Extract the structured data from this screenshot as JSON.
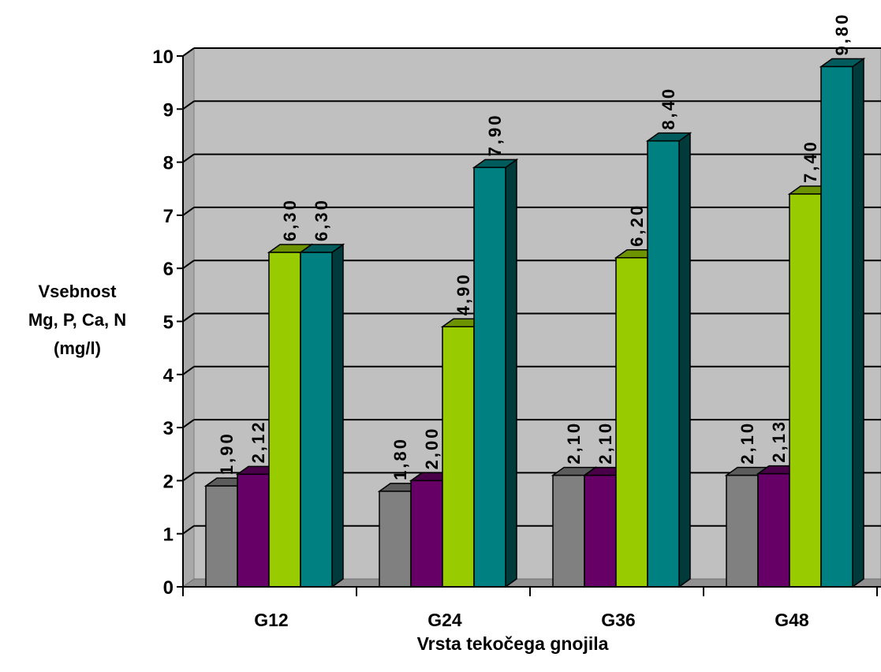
{
  "chart_data": {
    "type": "bar",
    "title": "",
    "xlabel": "Vrsta tekočega gnojila",
    "ylabel_lines": [
      "Vsebnost",
      "Mg, P, Ca, N",
      "(mg/l)"
    ],
    "categories": [
      "G12",
      "G24",
      "G36",
      "G48"
    ],
    "ylim": [
      0,
      10
    ],
    "yticks": [
      0,
      1,
      2,
      3,
      4,
      5,
      6,
      7,
      8,
      9,
      10
    ],
    "grid": true,
    "legend": "none",
    "series": [
      {
        "color": "#808080",
        "values": [
          1.9,
          1.8,
          2.1,
          2.1
        ],
        "labels": [
          "1,90",
          "1,80",
          "2,10",
          "2,10"
        ]
      },
      {
        "color": "#660066",
        "values": [
          2.12,
          2.0,
          2.1,
          2.13
        ],
        "labels": [
          "2,12",
          "2,00",
          "2,10",
          "2,13"
        ]
      },
      {
        "color": "#99cc00",
        "values": [
          6.3,
          4.9,
          6.2,
          7.4
        ],
        "labels": [
          "6,30",
          "4,90",
          "6,20",
          "7,40"
        ]
      },
      {
        "color": "#008080",
        "values": [
          6.3,
          7.9,
          8.4,
          9.8
        ],
        "labels": [
          "6,30",
          "7,90",
          "8,40",
          "9,80"
        ]
      }
    ]
  }
}
